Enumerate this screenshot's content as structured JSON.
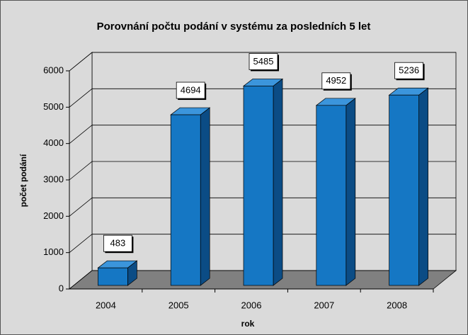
{
  "chart_data": {
    "type": "bar3d",
    "title": "Porovnání počtu podání v systému za posledních 5 let",
    "x_label": "rok",
    "y_label": "počet podání",
    "categories": [
      "2004",
      "2005",
      "2006",
      "2007",
      "2008"
    ],
    "values": [
      483,
      4694,
      5485,
      4952,
      5236
    ],
    "color": "#1577c4",
    "ylim": [
      0,
      6000
    ],
    "yticks": [
      0,
      1000,
      2000,
      3000,
      4000,
      5000,
      6000
    ],
    "grid": true
  }
}
